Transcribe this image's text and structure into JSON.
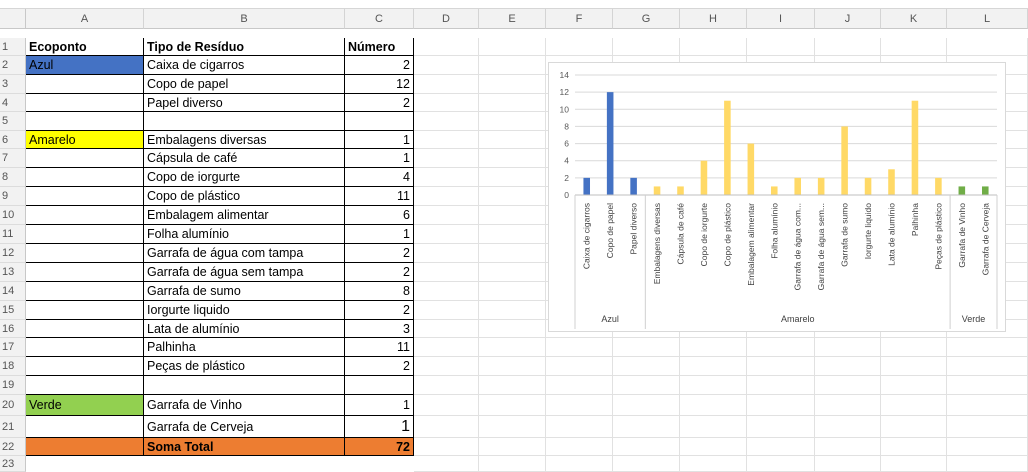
{
  "columns": [
    "A",
    "B",
    "C",
    "D",
    "E",
    "F",
    "G",
    "H",
    "I",
    "J",
    "K",
    "L"
  ],
  "rows": [
    "1",
    "2",
    "3",
    "4",
    "5",
    "6",
    "7",
    "8",
    "9",
    "10",
    "11",
    "12",
    "13",
    "14",
    "15",
    "16",
    "17",
    "18",
    "19",
    "20",
    "21",
    "22",
    "23"
  ],
  "table": {
    "header": {
      "ecoponto": "Ecoponto",
      "tipo": "Tipo de Resíduo",
      "numero": "Número"
    },
    "groups": {
      "azul": "Azul",
      "amarelo": "Amarelo",
      "verde": "Verde"
    },
    "items": [
      {
        "tipo": "Caixa de cigarros",
        "numero": "2"
      },
      {
        "tipo": "Copo de papel",
        "numero": "12"
      },
      {
        "tipo": "Papel diverso",
        "numero": "2"
      },
      {
        "tipo": "Embalagens diversas",
        "numero": "1"
      },
      {
        "tipo": "Cápsula de café",
        "numero": "1"
      },
      {
        "tipo": "Copo de iorgurte",
        "numero": "4"
      },
      {
        "tipo": "Copo de plástico",
        "numero": "11"
      },
      {
        "tipo": "Embalagem alimentar",
        "numero": "6"
      },
      {
        "tipo": "Folha alumínio",
        "numero": "1"
      },
      {
        "tipo": "Garrafa de água com tampa",
        "numero": "2"
      },
      {
        "tipo": "Garrafa de água sem tampa",
        "numero": "2"
      },
      {
        "tipo": "Garrafa de sumo",
        "numero": "8"
      },
      {
        "tipo": "Iorgurte liquido",
        "numero": "2"
      },
      {
        "tipo": "Lata de alumínio",
        "numero": "3"
      },
      {
        "tipo": "Palhinha",
        "numero": "11"
      },
      {
        "tipo": "Peças de plástico",
        "numero": "2"
      },
      {
        "tipo": "Garrafa de Vinho",
        "numero": "1"
      },
      {
        "tipo": "Garrafa de Cerveja",
        "numero": "1"
      }
    ],
    "total": {
      "label": "Soma Total",
      "value": "72"
    }
  },
  "colors": {
    "azul": "#4472c4",
    "amarelo": "#ffff00",
    "verde": "#92d050",
    "total": "#ed7d31",
    "bar_azul": "#4472c4",
    "bar_amarelo": "#ffd966",
    "bar_verde": "#70ad47"
  },
  "chart_data": {
    "type": "bar",
    "ylim": [
      0,
      14
    ],
    "yticks": [
      "0",
      "2",
      "4",
      "6",
      "8",
      "10",
      "12",
      "14"
    ],
    "groups": [
      {
        "name": "Azul",
        "categories": [
          "Caixa de cigarros",
          "Copo de papel",
          "Papel diverso"
        ],
        "values": [
          2,
          12,
          2
        ]
      },
      {
        "name": "Amarelo",
        "categories": [
          "Embalagens diversas",
          "Cápsula de café",
          "Copo de iorgurte",
          "Copo de plástico",
          "Embalagem alimentar",
          "Folha alumínio",
          "Garrafa de água com...",
          "Garrafa de água sem...",
          "Garrafa de sumo",
          "Iorgurte liquido",
          "Lata de alumínio",
          "Palhinha",
          "Peças de plástico"
        ],
        "values": [
          1,
          1,
          4,
          11,
          6,
          1,
          2,
          2,
          8,
          2,
          3,
          11,
          2
        ]
      },
      {
        "name": "Verde",
        "categories": [
          "Garrafa de Vinho",
          "Garrafa de Cerveja"
        ],
        "values": [
          1,
          1
        ]
      }
    ],
    "grid": true,
    "legend": "none"
  }
}
